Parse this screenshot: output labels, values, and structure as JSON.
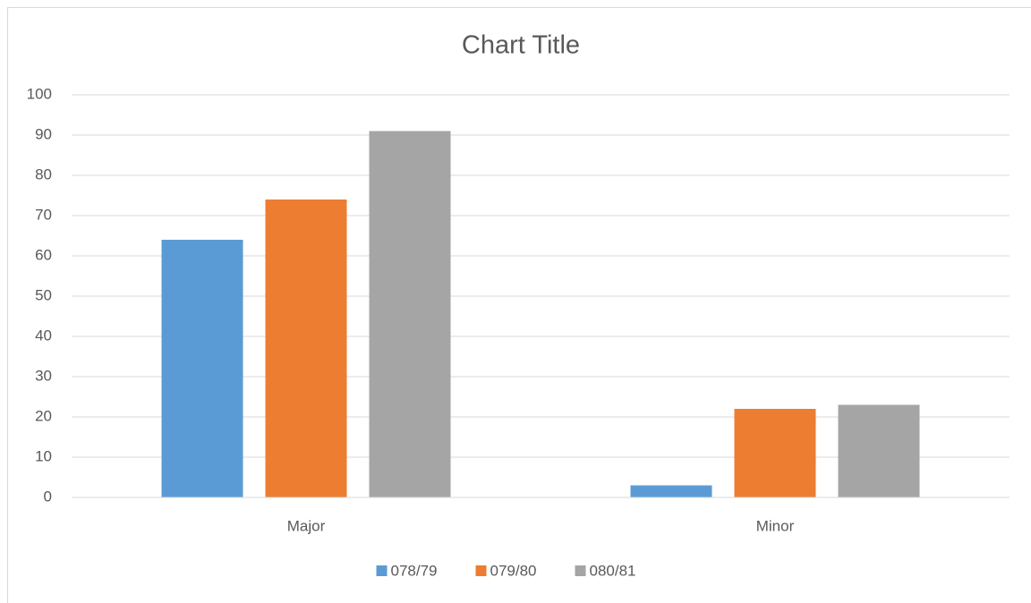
{
  "chart_data": {
    "type": "bar",
    "title": "Chart Title",
    "categories": [
      "Major",
      "Minor"
    ],
    "series": [
      {
        "name": "078/79",
        "color": "#5b9bd5",
        "values": [
          64,
          3
        ]
      },
      {
        "name": "079/80",
        "color": "#ed7d31",
        "values": [
          74,
          22
        ]
      },
      {
        "name": "080/81",
        "color": "#a5a5a5",
        "values": [
          91,
          23
        ]
      }
    ],
    "ylim": [
      0,
      100
    ],
    "yticks": [
      0,
      10,
      20,
      30,
      40,
      50,
      60,
      70,
      80,
      90,
      100
    ],
    "grid": true,
    "legend": "bottom"
  }
}
